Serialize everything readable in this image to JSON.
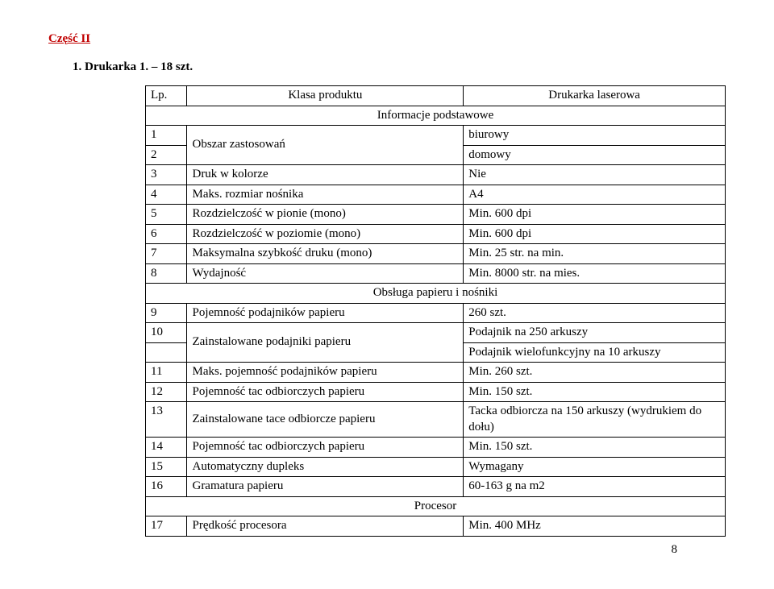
{
  "section_title": "Część II",
  "subtitle": "1.  Drukarka 1.  –  18 szt.",
  "page_number": "8",
  "header": {
    "col1": "Lp.",
    "col2": "Klasa produktu",
    "col3": "Drukarka laserowa"
  },
  "group1": "Informacje podstawowe",
  "group2": "Obsługa papieru i nośniki",
  "group3": "Procesor",
  "r1": {
    "n": "1",
    "v": "biurowy"
  },
  "r2": {
    "n": "2",
    "l": "Obszar zastosowań",
    "v": "domowy"
  },
  "r3": {
    "n": "3",
    "l": "Druk w kolorze",
    "v": "Nie"
  },
  "r4": {
    "n": "4",
    "l": "Maks. rozmiar nośnika",
    "v": "A4"
  },
  "r5": {
    "n": "5",
    "l": "Rozdzielczość w pionie (mono)",
    "v": "Min. 600 dpi"
  },
  "r6": {
    "n": "6",
    "l": "Rozdzielczość w poziomie (mono)",
    "v": "Min. 600 dpi"
  },
  "r7": {
    "n": "7",
    "l": "Maksymalna szybkość druku (mono)",
    "v": "Min. 25 str. na min."
  },
  "r8": {
    "n": "8",
    "l": "Wydajność",
    "v": "Min. 8000 str. na mies."
  },
  "r9": {
    "n": "9",
    "l": "Pojemność podajników papieru",
    "v": "260 szt."
  },
  "r10": {
    "n": "10",
    "l": "Zainstalowane podajniki papieru",
    "v1": " Podajnik na 250 arkuszy",
    "v2": " Podajnik wielofunkcyjny na 10 arkuszy"
  },
  "r11": {
    "n": "11",
    "l": "Maks. pojemność podajników papieru",
    "v": "Min. 260 szt."
  },
  "r12": {
    "n": "12",
    "l": "Pojemność tac odbiorczych papieru",
    "v": "Min. 150 szt."
  },
  "r13": {
    "n": "13",
    "l": "Zainstalowane tace odbiorcze papieru",
    "v": "Tacka odbiorcza na 150 arkuszy (wydrukiem do dołu)"
  },
  "r14": {
    "n": "14",
    "l": "Pojemność tac odbiorczych papieru",
    "v": "Min. 150 szt."
  },
  "r15": {
    "n": "15",
    "l": "Automatyczny dupleks",
    "v": "Wymagany"
  },
  "r16": {
    "n": "16",
    "l": "Gramatura papieru",
    "v": "60-163 g na m2"
  },
  "r17": {
    "n": "17",
    "l": "Prędkość procesora",
    "v": "Min. 400 MHz"
  }
}
